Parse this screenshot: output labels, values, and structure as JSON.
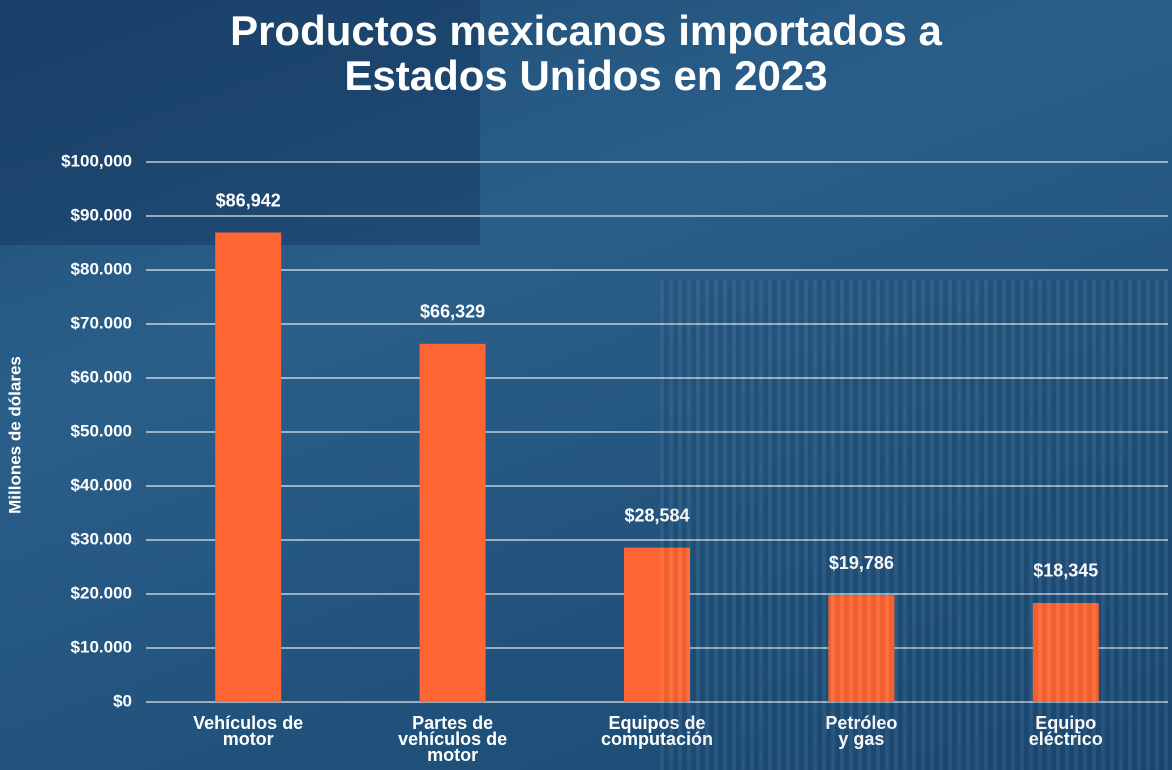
{
  "chart_data": {
    "type": "bar",
    "title": "Productos mexicanos importados a Estados Unidos en 2023",
    "y_label": "Millones de dólares",
    "categories": [
      "Vehículos de\nmotor",
      "Partes de\nvehículos de\nmotor",
      "Equipos de\ncomputación",
      "Petróleo\ny gas",
      "Equipo\neléctrico"
    ],
    "values": [
      86942,
      66329,
      28584,
      19786,
      18345
    ],
    "value_labels": [
      "$86,942",
      "$66,329",
      "$28,584",
      "$19,786",
      "$18,345"
    ],
    "color": "#ff6633",
    "ylim": [
      0,
      100000
    ],
    "yticks": [
      {
        "value": 0,
        "label": "$0"
      },
      {
        "value": 10000,
        "label": "$10.000"
      },
      {
        "value": 20000,
        "label": "$20.000"
      },
      {
        "value": 30000,
        "label": "$30.000"
      },
      {
        "value": 40000,
        "label": "$40.000"
      },
      {
        "value": 50000,
        "label": "$50.000"
      },
      {
        "value": 60000,
        "label": "$60.000"
      },
      {
        "value": 70000,
        "label": "$70.000"
      },
      {
        "value": 80000,
        "label": "$80.000"
      },
      {
        "value": 90000,
        "label": "$90.000"
      },
      {
        "value": 100000,
        "label": "$100,000"
      }
    ],
    "grid": true
  }
}
